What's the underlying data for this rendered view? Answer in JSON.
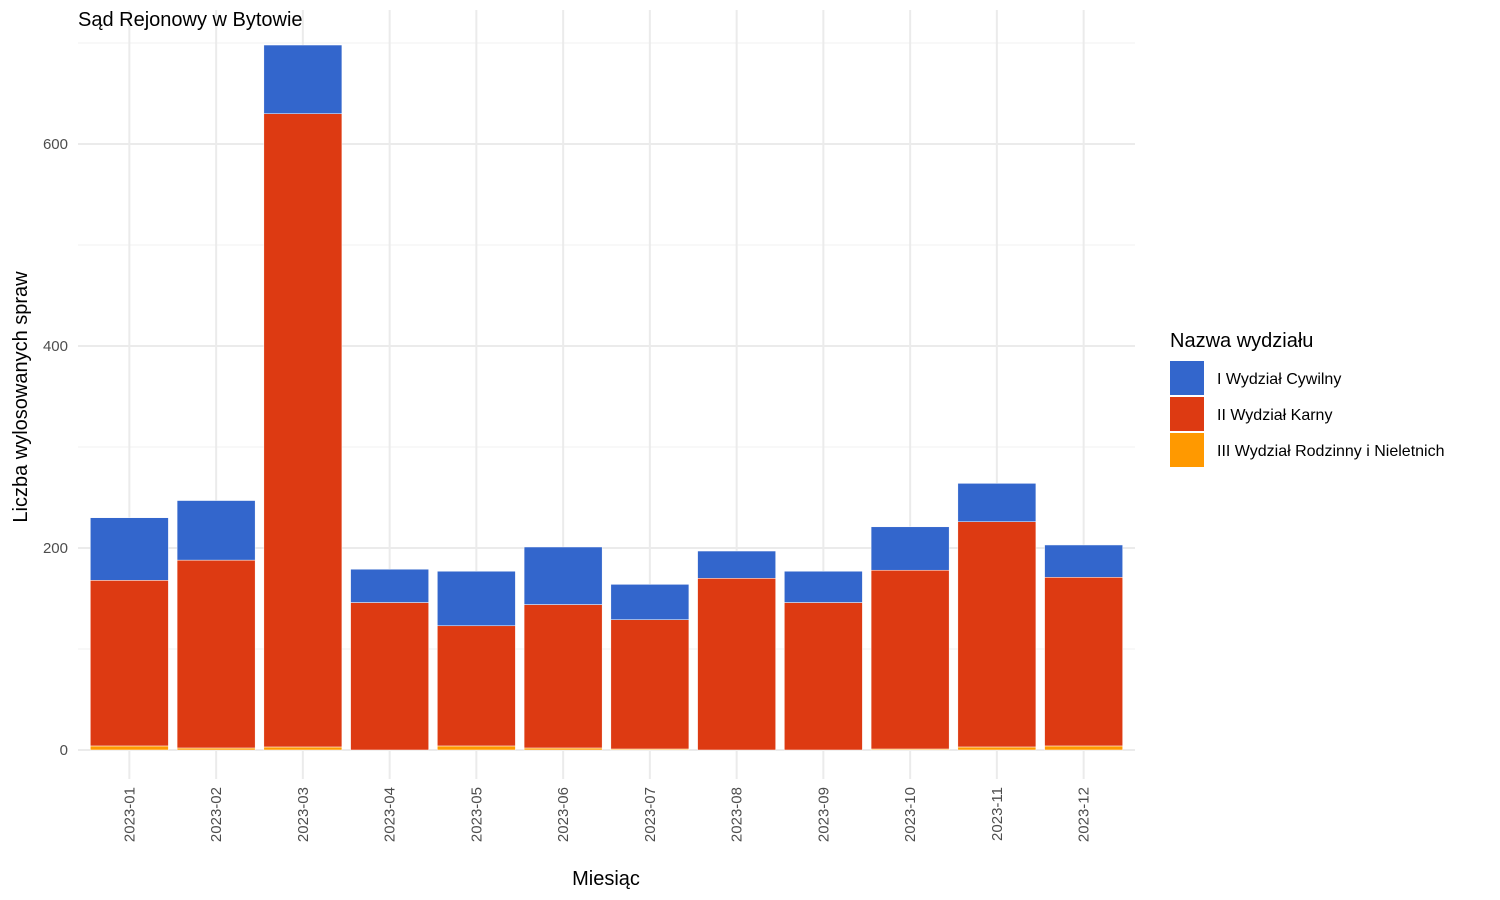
{
  "chart_data": {
    "type": "bar",
    "stacked": true,
    "title": "Sąd Rejonowy w Bytowie",
    "xlabel": "Miesiąc",
    "ylabel": "Liczba wylosowanych spraw",
    "ylim": [
      0,
      700
    ],
    "yticks": [
      0,
      200,
      400,
      600
    ],
    "grid": true,
    "legend_position": "right",
    "legend_title": "Nazwa wydziału",
    "categories": [
      "2023-01",
      "2023-02",
      "2023-03",
      "2023-04",
      "2023-05",
      "2023-06",
      "2023-07",
      "2023-08",
      "2023-09",
      "2023-10",
      "2023-11",
      "2023-12"
    ],
    "series": [
      {
        "name": "III Wydział Rodzinny i Nieletnich",
        "color": "#FF9900",
        "values": [
          4,
          2,
          3,
          0,
          4,
          2,
          1,
          0,
          0,
          1,
          3,
          4
        ]
      },
      {
        "name": "II Wydział Karny",
        "color": "#DD3A12",
        "values": [
          164,
          186,
          627,
          146,
          119,
          142,
          128,
          170,
          146,
          177,
          223,
          167
        ]
      },
      {
        "name": "I Wydział Cywilny",
        "color": "#3366CC",
        "values": [
          62,
          59,
          68,
          33,
          54,
          57,
          35,
          27,
          31,
          43,
          38,
          32
        ]
      }
    ],
    "legend_order": [
      "I Wydział Cywilny",
      "II Wydział Karny",
      "III Wydział Rodzinny i Nieletnich"
    ]
  }
}
